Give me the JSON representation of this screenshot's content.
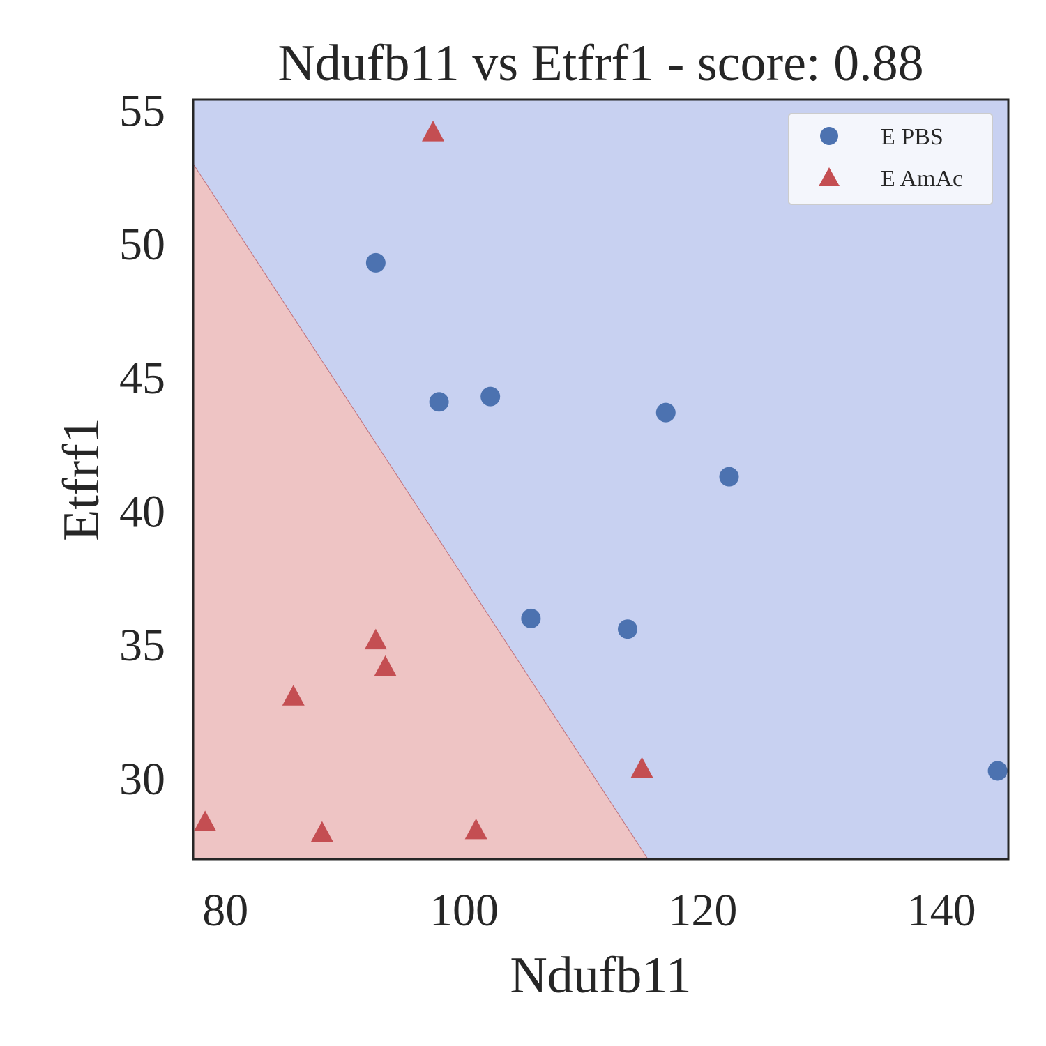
{
  "chart_data": {
    "type": "scatter",
    "title": "Ndufb11 vs Etfrf1 - score: 0.88",
    "xlabel": "Ndufb11",
    "ylabel": "Etfrf1",
    "xlim": [
      77.3,
      145.6
    ],
    "ylim": [
      27.0,
      55.4
    ],
    "xticks": [
      80,
      100,
      120,
      140
    ],
    "yticks": [
      30,
      35,
      40,
      45,
      50,
      55
    ],
    "grid": false,
    "legend_position": "top-right",
    "decision_boundary": {
      "points": [
        [
          77.3,
          53.0
        ],
        [
          115.4,
          27.0
        ]
      ],
      "region_colors": {
        "E PBS": "#c8d1f1",
        "E AmAc": "#eec4c4"
      },
      "boundary_color": "#c0707a"
    },
    "series": [
      {
        "name": "E PBS",
        "marker": "circle",
        "color": "#4c72b0",
        "points": [
          {
            "x": 92.6,
            "y": 49.3
          },
          {
            "x": 97.9,
            "y": 44.1
          },
          {
            "x": 102.2,
            "y": 44.3
          },
          {
            "x": 105.6,
            "y": 36.0
          },
          {
            "x": 113.7,
            "y": 35.6
          },
          {
            "x": 116.9,
            "y": 43.7
          },
          {
            "x": 122.2,
            "y": 41.3
          },
          {
            "x": 144.7,
            "y": 30.3
          }
        ]
      },
      {
        "name": "E AmAc",
        "marker": "triangle",
        "color": "#c44e52",
        "points": [
          {
            "x": 97.4,
            "y": 54.2
          },
          {
            "x": 92.6,
            "y": 35.2
          },
          {
            "x": 93.4,
            "y": 34.2
          },
          {
            "x": 85.7,
            "y": 33.1
          },
          {
            "x": 78.3,
            "y": 28.4
          },
          {
            "x": 88.1,
            "y": 28.0
          },
          {
            "x": 101.0,
            "y": 28.1
          },
          {
            "x": 114.9,
            "y": 30.4
          }
        ]
      }
    ]
  }
}
